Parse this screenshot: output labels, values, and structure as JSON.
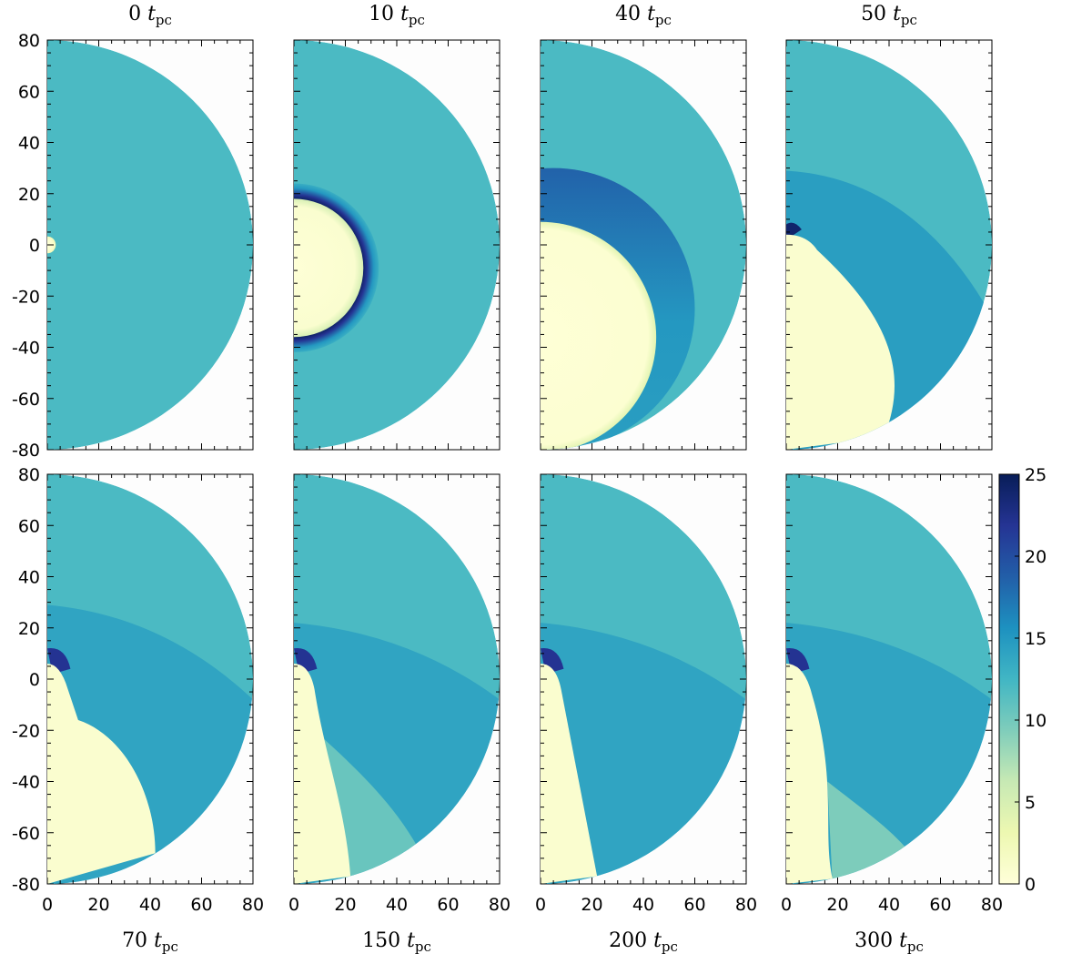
{
  "figure": {
    "colorscale": [
      "#ffffd9",
      "#edf8b1",
      "#c7e9b4",
      "#7fcdbb",
      "#41b6c4",
      "#1d91c0",
      "#225ea8",
      "#253494",
      "#081d58"
    ],
    "colorbar": {
      "range": [
        0,
        25
      ],
      "ticks": [
        "0",
        "5",
        "10",
        "15",
        "20",
        "25"
      ]
    },
    "axes": {
      "x_range": [
        0,
        80
      ],
      "y_range": [
        -80,
        80
      ],
      "x_ticks": [
        "0",
        "20",
        "40",
        "60",
        "80"
      ],
      "y_ticks": [
        "80",
        "60",
        "40",
        "20",
        "0",
        "-20",
        "-40",
        "-60",
        "-80"
      ]
    },
    "panels": [
      {
        "time": "0",
        "unit": "t",
        "unit_sub": "pc",
        "title_position": "top",
        "ambient_value": 12.0
      },
      {
        "time": "10",
        "unit": "t",
        "unit_sub": "pc",
        "title_position": "top",
        "ambient_value": 12.0
      },
      {
        "time": "40",
        "unit": "t",
        "unit_sub": "pc",
        "title_position": "top",
        "ambient_value": 12.0
      },
      {
        "time": "50",
        "unit": "t",
        "unit_sub": "pc",
        "title_position": "top",
        "ambient_value": 12.0
      },
      {
        "time": "70",
        "unit": "t",
        "unit_sub": "pc",
        "title_position": "bottom",
        "ambient_value": 12.0
      },
      {
        "time": "150",
        "unit": "t",
        "unit_sub": "pc",
        "title_position": "bottom",
        "ambient_value": 12.0
      },
      {
        "time": "200",
        "unit": "t",
        "unit_sub": "pc",
        "title_position": "bottom",
        "ambient_value": 12.0
      },
      {
        "time": "300",
        "unit": "t",
        "unit_sub": "pc",
        "title_position": "bottom",
        "ambient_value": 12.0
      }
    ]
  }
}
